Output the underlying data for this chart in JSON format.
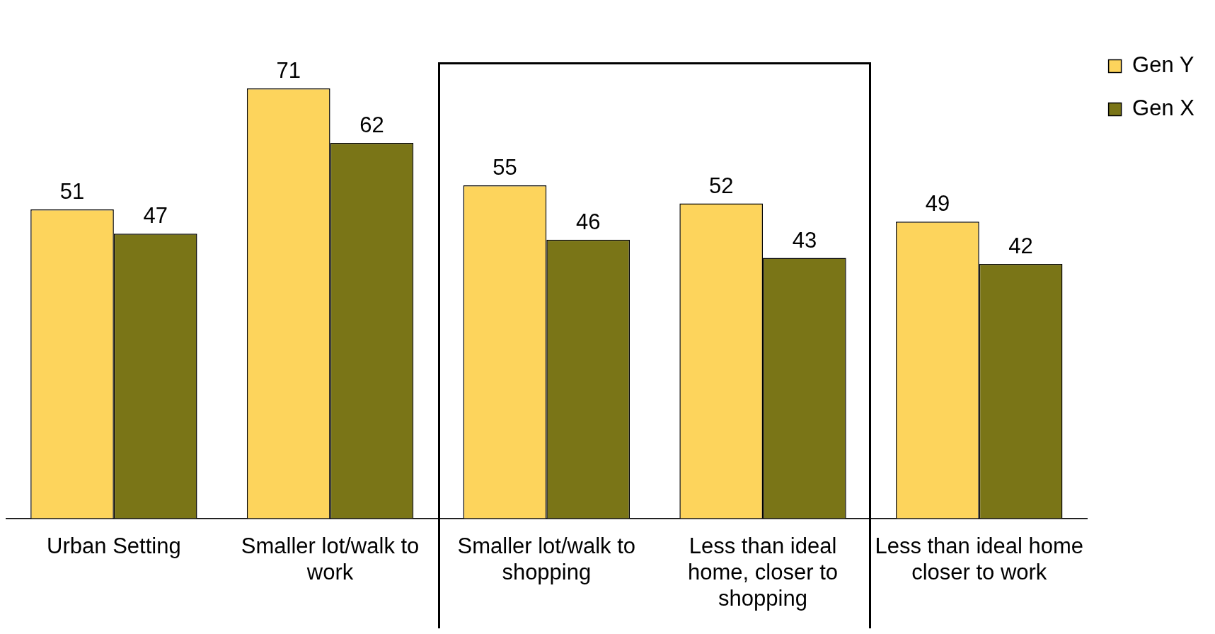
{
  "chart_data": {
    "type": "bar",
    "categories": [
      "Urban Setting",
      "Smaller lot/walk to work",
      "Smaller lot/walk to shopping",
      "Less than ideal home, closer to shopping",
      "Less than ideal home closer to work"
    ],
    "series": [
      {
        "name": "Gen Y",
        "color": "#fdd45c",
        "values": [
          51,
          71,
          55,
          52,
          49
        ]
      },
      {
        "name": "Gen X",
        "color": "#7a7517",
        "values": [
          47,
          62,
          46,
          43,
          42
        ]
      }
    ],
    "data_labels": true,
    "legend": "top right"
  }
}
